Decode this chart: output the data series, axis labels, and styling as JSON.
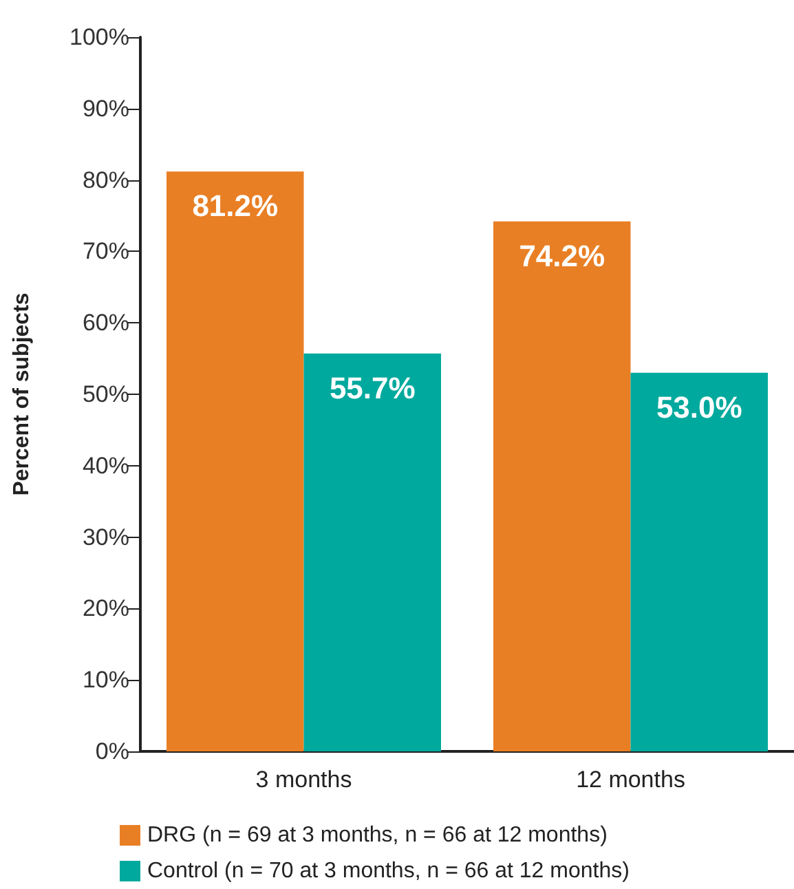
{
  "chart_data": {
    "type": "bar",
    "ylabel": "Percent of subjects",
    "categories": [
      "3 months",
      "12 months"
    ],
    "series": [
      {
        "name": "DRG (n = 69 at 3 months, n = 66 at 12 months)",
        "color": "#e97f24",
        "values": [
          81.2,
          74.2
        ],
        "value_labels": [
          "81.2%",
          "74.2%"
        ]
      },
      {
        "name": "Control (n = 70 at 3 months, n = 66 at 12 months)",
        "color": "#00a99d",
        "values": [
          55.7,
          53.0
        ],
        "value_labels": [
          "55.7%",
          "53.0%"
        ]
      }
    ],
    "ylim": [
      0,
      100
    ],
    "yticks": [
      {
        "value": 0,
        "label": "0%"
      },
      {
        "value": 10,
        "label": "10%"
      },
      {
        "value": 20,
        "label": "20%"
      },
      {
        "value": 30,
        "label": "30%"
      },
      {
        "value": 40,
        "label": "40%"
      },
      {
        "value": 50,
        "label": "50%"
      },
      {
        "value": 60,
        "label": "60%"
      },
      {
        "value": 70,
        "label": "70%"
      },
      {
        "value": 80,
        "label": "80%"
      },
      {
        "value": 90,
        "label": "90%"
      },
      {
        "value": 100,
        "label": "100%"
      }
    ],
    "grid": false,
    "legend": "bottom"
  }
}
